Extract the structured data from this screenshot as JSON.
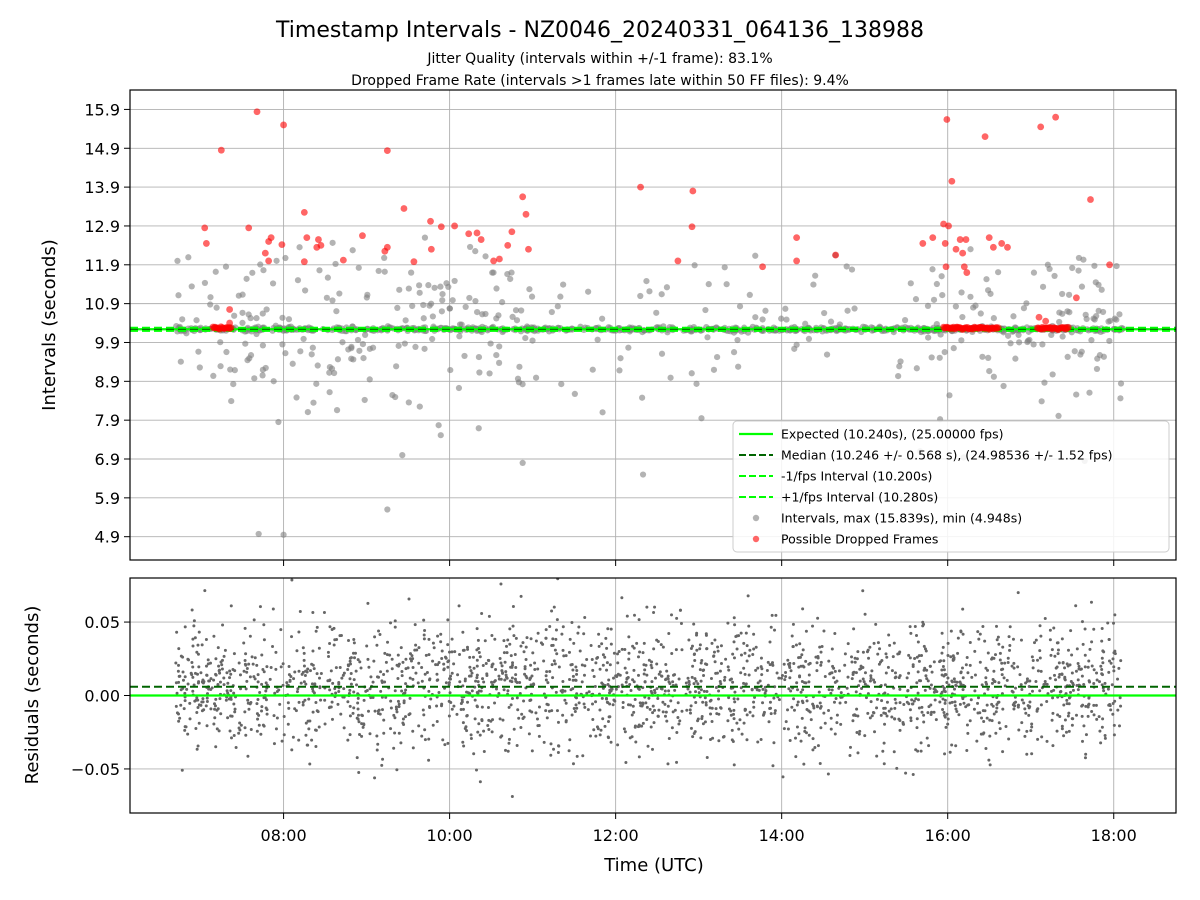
{
  "figure": {
    "title": "Timestamp Intervals - NZ0046_20240331_064136_138988",
    "subtitle_1": "Jitter Quality (intervals within +/-1 frame): 83.1%",
    "subtitle_2": "Dropped Frame Rate (intervals >1 frames late within 50 FF files): 9.4%",
    "xlabel": "Time (UTC)"
  },
  "colors": {
    "expected": "#00ff00",
    "median": "#006400",
    "bounds": "#00ff00",
    "intervals": "#808080",
    "dropped": "#ff0000",
    "residuals": "#666666"
  },
  "chart_data": [
    {
      "type": "scatter",
      "ylabel": "Intervals (seconds)",
      "x_range_hours": [
        6.15,
        18.75
      ],
      "ylim": [
        4.3,
        16.4
      ],
      "x_ticks": [
        {
          "h": 8,
          "label": "08:00"
        },
        {
          "h": 10,
          "label": "10:00"
        },
        {
          "h": 12,
          "label": "12:00"
        },
        {
          "h": 14,
          "label": "14:00"
        },
        {
          "h": 16,
          "label": "16:00"
        },
        {
          "h": 18,
          "label": "18:00"
        }
      ],
      "y_ticks": [
        4.9,
        5.9,
        6.9,
        7.9,
        8.9,
        9.9,
        10.9,
        11.9,
        12.9,
        13.9,
        14.9,
        15.9
      ],
      "y_tick_labels": [
        "4.9",
        "5.9",
        "6.9",
        "7.9",
        "8.9",
        "9.9",
        "10.9",
        "11.9",
        "12.9",
        "13.9",
        "14.9",
        "15.9"
      ],
      "grid": true,
      "legend_position": "lower-right",
      "lines": {
        "expected": 10.24,
        "median": 10.246,
        "lower": 10.2,
        "upper": 10.28
      },
      "legend": [
        {
          "label": "Expected (10.240s), (25.00000 fps)",
          "style": "solid",
          "color": "#00ff00"
        },
        {
          "label": "Median (10.246 +/- 0.568 s), (24.98536 +/- 1.52 fps)",
          "style": "dashed",
          "color": "#006400"
        },
        {
          "label": "-1/fps Interval (10.200s)",
          "style": "dashed",
          "color": "#00ff00"
        },
        {
          "label": "+1/fps Interval (10.280s)",
          "style": "dashed",
          "color": "#00ff00"
        },
        {
          "label": "Intervals, max (15.839s), min (4.948s)",
          "style": "marker",
          "color": "#808080"
        },
        {
          "label": "Possible Dropped Frames",
          "style": "marker",
          "color": "#ff0000"
        }
      ],
      "data_span_hours": [
        6.7,
        18.12
      ],
      "intervals_max": 15.839,
      "intervals_min": 4.948,
      "dropped_points": [
        [
          7.25,
          14.85
        ],
        [
          7.68,
          15.84
        ],
        [
          8.0,
          15.5
        ],
        [
          9.25,
          14.84
        ],
        [
          15.99,
          15.64
        ],
        [
          16.45,
          15.2
        ],
        [
          17.12,
          15.45
        ],
        [
          17.3,
          15.7
        ],
        [
          12.3,
          13.9
        ],
        [
          12.93,
          13.8
        ],
        [
          10.88,
          13.65
        ],
        [
          17.72,
          13.58
        ],
        [
          9.45,
          13.35
        ],
        [
          8.25,
          13.25
        ],
        [
          10.92,
          13.2
        ],
        [
          16.05,
          14.05
        ],
        [
          9.77,
          13.02
        ],
        [
          9.9,
          12.88
        ],
        [
          10.06,
          12.9
        ],
        [
          7.05,
          12.85
        ],
        [
          15.95,
          12.95
        ],
        [
          16.01,
          12.9
        ],
        [
          12.92,
          12.88
        ],
        [
          7.58,
          12.85
        ],
        [
          10.23,
          12.7
        ],
        [
          10.33,
          12.72
        ],
        [
          10.38,
          12.55
        ],
        [
          8.95,
          12.65
        ],
        [
          10.75,
          12.75
        ],
        [
          14.18,
          12.6
        ],
        [
          8.28,
          12.6
        ],
        [
          8.42,
          12.55
        ],
        [
          8.45,
          12.4
        ],
        [
          7.82,
          12.5
        ],
        [
          7.85,
          12.6
        ],
        [
          7.98,
          12.42
        ],
        [
          8.4,
          12.35
        ],
        [
          9.25,
          12.35
        ],
        [
          9.22,
          12.25
        ],
        [
          7.07,
          12.45
        ],
        [
          9.78,
          12.3
        ],
        [
          10.53,
          12.0
        ],
        [
          10.6,
          12.05
        ],
        [
          10.7,
          12.4
        ],
        [
          10.95,
          12.3
        ],
        [
          12.75,
          12.0
        ],
        [
          13.77,
          11.85
        ],
        [
          14.18,
          12.0
        ],
        [
          14.65,
          12.15
        ],
        [
          15.7,
          12.45
        ],
        [
          15.82,
          12.6
        ],
        [
          15.97,
          12.45
        ],
        [
          16.1,
          12.3
        ],
        [
          16.15,
          12.55
        ],
        [
          16.18,
          12.2
        ],
        [
          16.22,
          12.55
        ],
        [
          16.5,
          12.6
        ],
        [
          16.55,
          12.35
        ],
        [
          16.65,
          12.45
        ],
        [
          16.72,
          12.35
        ],
        [
          16.2,
          11.85
        ],
        [
          16.23,
          11.7
        ],
        [
          17.95,
          11.9
        ],
        [
          15.98,
          11.85
        ],
        [
          17.55,
          11.05
        ],
        [
          7.78,
          12.2
        ],
        [
          7.82,
          12.0
        ],
        [
          8.25,
          11.98
        ],
        [
          8.72,
          12.02
        ],
        [
          9.57,
          11.98
        ],
        [
          7.35,
          10.75
        ],
        [
          7.35,
          10.4
        ],
        [
          17.1,
          10.55
        ],
        [
          17.18,
          10.45
        ]
      ],
      "dropped_cluster_bands": [
        [
          7.15,
          7.37
        ],
        [
          15.95,
          16.62
        ],
        [
          17.08,
          17.46
        ]
      ],
      "dropped_cluster_value": 10.27
    },
    {
      "type": "scatter",
      "ylabel": "Residuals (seconds)",
      "ylim": [
        -0.08,
        0.08
      ],
      "y_ticks": [
        -0.05,
        0.0,
        0.05
      ],
      "y_tick_labels": [
        "−0.05",
        "0.00",
        "0.05"
      ],
      "grid": true,
      "lines": {
        "zero": 0.0,
        "median": 0.006
      },
      "residual_std": 0.022,
      "points_span_hours": [
        6.7,
        18.12
      ],
      "point_count": 2300
    }
  ]
}
